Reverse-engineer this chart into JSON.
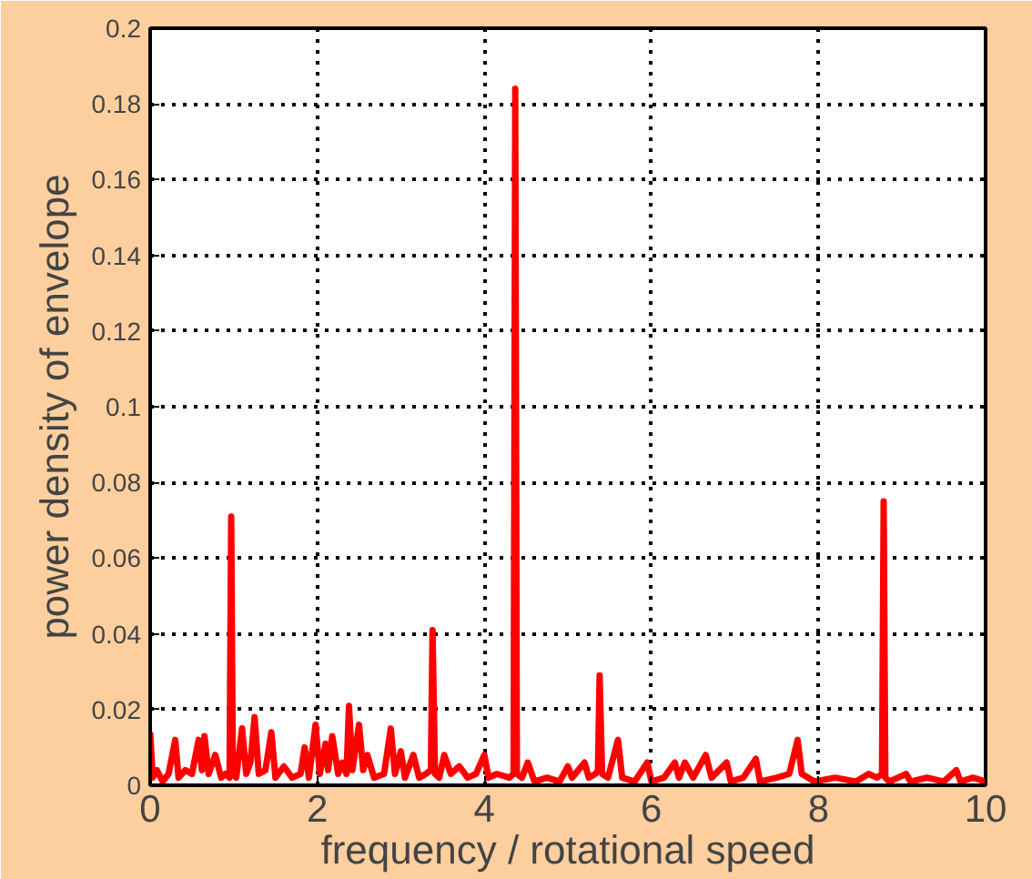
{
  "chart_data": {
    "type": "line",
    "xlabel": "frequency / rotational speed",
    "ylabel": "power density of envelope",
    "xlim": [
      0,
      10
    ],
    "ylim": [
      0,
      0.2
    ],
    "xticks": [
      0,
      2,
      4,
      6,
      8,
      10
    ],
    "yticks": [
      0,
      {
        "value": 0.02,
        "label": "0.02"
      },
      {
        "value": 0.04,
        "label": "0.04"
      },
      {
        "value": 0.06,
        "label": "0.06"
      },
      {
        "value": 0.08,
        "label": "0.08"
      },
      {
        "value": 0.1,
        "label": "0.1"
      },
      {
        "value": 0.12,
        "label": "0.12"
      },
      {
        "value": 0.14,
        "label": "0.14"
      },
      {
        "value": 0.16,
        "label": "0.16"
      },
      {
        "value": 0.18,
        "label": "0.18"
      },
      {
        "value": 0.2,
        "label": "0.2"
      }
    ],
    "grid": true,
    "marker": "none",
    "line_style": "solid",
    "series": [
      {
        "color": "#ff0000",
        "x": [
          0,
          0.03,
          0.08,
          0.15,
          0.22,
          0.3,
          0.34,
          0.42,
          0.5,
          0.58,
          0.62,
          0.65,
          0.7,
          0.78,
          0.85,
          0.9,
          0.95,
          0.97,
          0.99,
          1.03,
          1.1,
          1.15,
          1.2,
          1.25,
          1.3,
          1.38,
          1.45,
          1.5,
          1.6,
          1.7,
          1.8,
          1.85,
          1.9,
          1.98,
          2.03,
          2.1,
          2.13,
          2.18,
          2.25,
          2.3,
          2.35,
          2.38,
          2.42,
          2.5,
          2.55,
          2.6,
          2.68,
          2.8,
          2.88,
          2.93,
          3.0,
          3.05,
          3.15,
          3.22,
          3.3,
          3.36,
          3.38,
          3.41,
          3.46,
          3.52,
          3.6,
          3.7,
          3.8,
          3.9,
          4.0,
          4.05,
          4.15,
          4.3,
          4.35,
          4.37,
          4.39,
          4.45,
          4.52,
          4.6,
          4.75,
          4.9,
          5.0,
          5.05,
          5.2,
          5.25,
          5.33,
          5.36,
          5.38,
          5.41,
          5.48,
          5.6,
          5.65,
          5.8,
          5.95,
          6.0,
          6.15,
          6.28,
          6.33,
          6.4,
          6.5,
          6.65,
          6.72,
          6.9,
          6.95,
          7.1,
          7.25,
          7.3,
          7.5,
          7.65,
          7.75,
          7.8,
          7.95,
          8.2,
          8.45,
          8.6,
          8.7,
          8.76,
          8.78,
          8.8,
          8.85,
          9.05,
          9.1,
          9.3,
          9.5,
          9.65,
          9.7,
          9.85,
          10
        ],
        "values": [
          0.014,
          0.002,
          0.004,
          0.001,
          0.003,
          0.012,
          0.002,
          0.004,
          0.003,
          0.012,
          0.004,
          0.013,
          0.003,
          0.008,
          0.002,
          0.003,
          0.002,
          0.071,
          0.003,
          0.002,
          0.015,
          0.003,
          0.006,
          0.018,
          0.003,
          0.004,
          0.014,
          0.002,
          0.005,
          0.002,
          0.003,
          0.01,
          0.002,
          0.016,
          0.003,
          0.011,
          0.004,
          0.013,
          0.003,
          0.006,
          0.003,
          0.021,
          0.004,
          0.016,
          0.004,
          0.008,
          0.002,
          0.003,
          0.015,
          0.003,
          0.009,
          0.002,
          0.008,
          0.002,
          0.003,
          0.004,
          0.041,
          0.003,
          0.002,
          0.008,
          0.003,
          0.005,
          0.002,
          0.003,
          0.008,
          0.002,
          0.003,
          0.002,
          0.003,
          0.184,
          0.003,
          0.002,
          0.006,
          0.001,
          0.002,
          0.001,
          0.005,
          0.002,
          0.006,
          0.002,
          0.003,
          0.004,
          0.029,
          0.003,
          0.002,
          0.012,
          0.002,
          0.001,
          0.006,
          0.001,
          0.002,
          0.006,
          0.002,
          0.006,
          0.002,
          0.008,
          0.002,
          0.006,
          0.001,
          0.002,
          0.007,
          0.001,
          0.002,
          0.003,
          0.012,
          0.003,
          0.001,
          0.002,
          0.001,
          0.003,
          0.002,
          0.003,
          0.075,
          0.002,
          0.001,
          0.003,
          0.001,
          0.002,
          0.001,
          0.004,
          0.001,
          0.002,
          0.001
        ]
      }
    ]
  }
}
